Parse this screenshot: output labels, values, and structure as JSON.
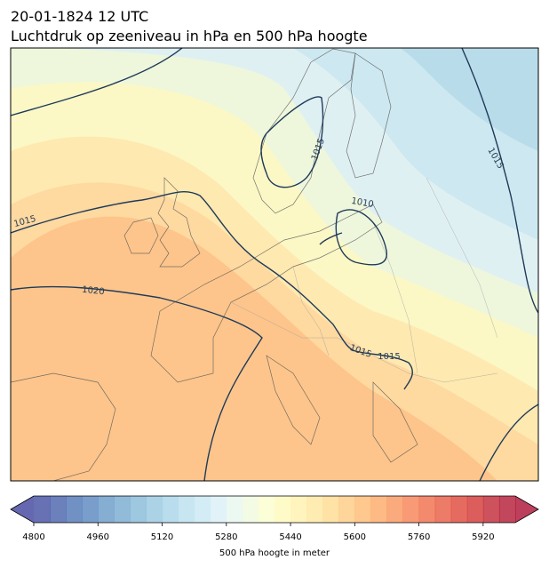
{
  "header": {
    "title": "20-01-1824 12 UTC",
    "subtitle": "Luchtdruk op zeeniveau in hPa en 500 hPa hoogte"
  },
  "map": {
    "contour_labels": [
      "1015",
      "1015",
      "1015",
      "1010",
      "1020",
      "1015",
      "1015"
    ]
  },
  "colorbar": {
    "label": "500 hPa hoogte in meter",
    "range": [
      4800,
      6000
    ],
    "ticks": [
      4800,
      4960,
      5120,
      5280,
      5440,
      5600,
      5760,
      5920
    ]
  }
}
